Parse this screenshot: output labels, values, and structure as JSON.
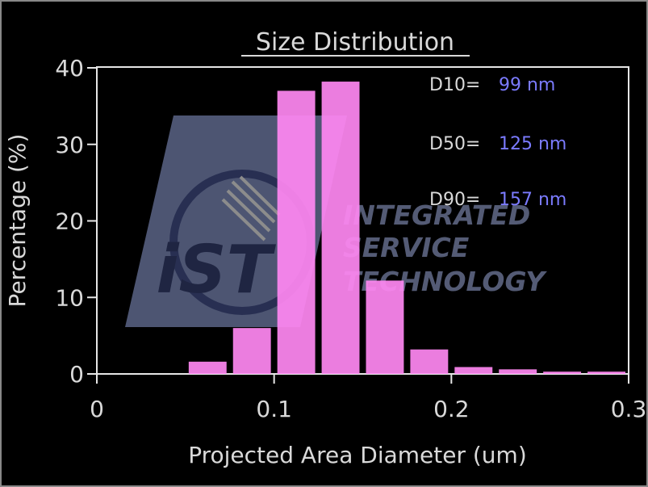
{
  "chart_data": {
    "type": "bar",
    "title": "Size Distribution",
    "xlabel": "Projected Area Diameter (um)",
    "ylabel": "Percentage (%)",
    "xlim": [
      0,
      0.3
    ],
    "ylim": [
      0,
      40
    ],
    "x_ticks": [
      "0",
      "0.1",
      "0.2",
      "0.3"
    ],
    "y_ticks": [
      "0",
      "10",
      "20",
      "30",
      "40"
    ],
    "bin_width": 0.025,
    "bins": [
      {
        "x_start": 0.05,
        "x_end": 0.075,
        "value": 1.6
      },
      {
        "x_start": 0.075,
        "x_end": 0.1,
        "value": 6.0
      },
      {
        "x_start": 0.1,
        "x_end": 0.125,
        "value": 37.0
      },
      {
        "x_start": 0.125,
        "x_end": 0.15,
        "value": 38.2
      },
      {
        "x_start": 0.15,
        "x_end": 0.175,
        "value": 12.2
      },
      {
        "x_start": 0.175,
        "x_end": 0.2,
        "value": 3.2
      },
      {
        "x_start": 0.2,
        "x_end": 0.225,
        "value": 0.9
      },
      {
        "x_start": 0.225,
        "x_end": 0.25,
        "value": 0.6
      },
      {
        "x_start": 0.25,
        "x_end": 0.275,
        "value": 0.3
      },
      {
        "x_start": 0.275,
        "x_end": 0.3,
        "value": 0.3
      }
    ],
    "bar_color": "#ff88f2",
    "grid": false,
    "annotations": [
      {
        "label": "D10=",
        "value": "99 nm"
      },
      {
        "label": "D50=",
        "value": "125 nm"
      },
      {
        "label": "D90=",
        "value": "157 nm"
      }
    ]
  },
  "watermark": {
    "logo_text": "iST",
    "company_lines": [
      "INTEGRATED",
      "SERVICE",
      "TECHNOLOGY"
    ]
  },
  "colors": {
    "background": "#000000",
    "axis": "#e6e6e6",
    "text": "#d9d9d9",
    "annotation_value": "#7b7bff",
    "watermark": "#9aa7d6"
  }
}
